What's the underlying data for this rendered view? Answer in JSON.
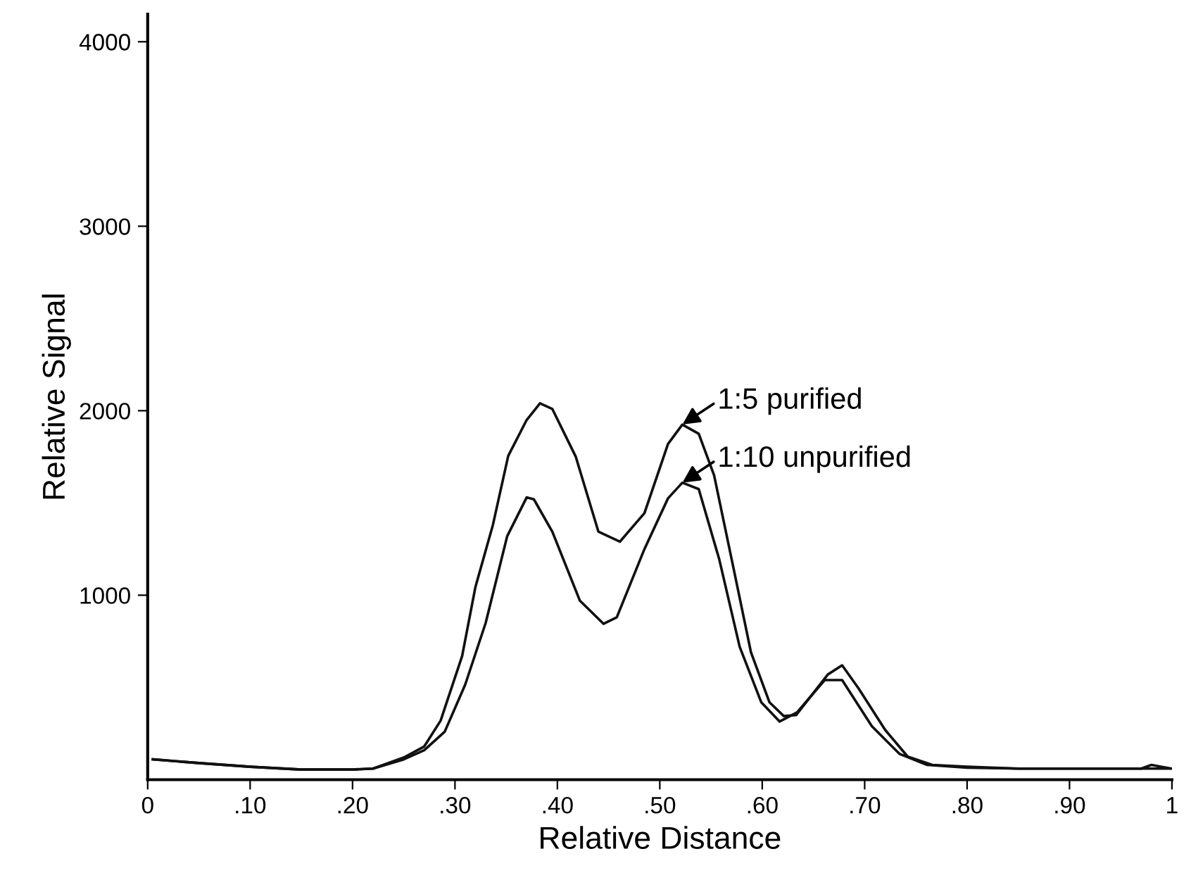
{
  "chart_data": {
    "type": "line",
    "xlabel": "Relative Distance",
    "ylabel": "Relative Signal",
    "xlim": [
      0,
      1
    ],
    "ylim": [
      0,
      4150
    ],
    "xticks": [
      0,
      {
        "value": 0.1,
        "label": ".10"
      },
      {
        "value": 0.2,
        "label": ".20"
      },
      {
        "value": 0.3,
        "label": ".30"
      },
      {
        "value": 0.4,
        "label": ".40"
      },
      {
        "value": 0.5,
        "label": ".50"
      },
      {
        "value": 0.6,
        "label": ".60"
      },
      {
        "value": 0.7,
        "label": ".70"
      },
      {
        "value": 0.8,
        "label": ".80"
      },
      {
        "value": 0.9,
        "label": ".90"
      },
      1
    ],
    "yticks": [
      1000,
      2000,
      3000,
      4000
    ],
    "grid": false,
    "legend": false,
    "marker": "none",
    "line_style": "solid",
    "annotations": [
      {
        "text": "1:5 purified",
        "x": 0.522,
        "y": 1925
      },
      {
        "text": "1:10 unpurified",
        "x": 0.522,
        "y": 1610
      }
    ],
    "series": [
      {
        "color": "#111111",
        "x": [
          0.005,
          0.05,
          0.1,
          0.15,
          0.2,
          0.22,
          0.25,
          0.27,
          0.286,
          0.307,
          0.32,
          0.337,
          0.352,
          0.37,
          0.383,
          0.395,
          0.418,
          0.44,
          0.461,
          0.485,
          0.508,
          0.522,
          0.538,
          0.553,
          0.572,
          0.589,
          0.607,
          0.621,
          0.633,
          0.664,
          0.678,
          0.694,
          0.72,
          0.742,
          0.766,
          0.8,
          0.85,
          0.9,
          0.97,
          0.98,
          0.99,
          1.0
        ],
        "values": [
          110,
          90,
          70,
          55,
          55,
          60,
          120,
          180,
          320,
          670,
          1045,
          1380,
          1755,
          1950,
          2040,
          2010,
          1750,
          1345,
          1290,
          1445,
          1820,
          1925,
          1875,
          1650,
          1145,
          690,
          420,
          345,
          350,
          570,
          620,
          495,
          270,
          125,
          80,
          70,
          60,
          60,
          60,
          80,
          70,
          60
        ]
      },
      {
        "color": "#111111",
        "x": [
          0.005,
          0.05,
          0.1,
          0.15,
          0.2,
          0.22,
          0.25,
          0.27,
          0.29,
          0.31,
          0.33,
          0.351,
          0.37,
          0.377,
          0.395,
          0.422,
          0.445,
          0.458,
          0.485,
          0.508,
          0.522,
          0.538,
          0.558,
          0.578,
          0.599,
          0.617,
          0.634,
          0.661,
          0.678,
          0.707,
          0.734,
          0.761,
          0.8,
          0.85,
          0.9,
          1.0
        ],
        "values": [
          110,
          90,
          70,
          55,
          55,
          60,
          110,
          160,
          260,
          515,
          850,
          1320,
          1530,
          1520,
          1345,
          970,
          845,
          880,
          1250,
          1525,
          1610,
          1575,
          1195,
          720,
          420,
          315,
          365,
          540,
          540,
          290,
          140,
          80,
          65,
          60,
          60,
          60
        ]
      }
    ]
  }
}
